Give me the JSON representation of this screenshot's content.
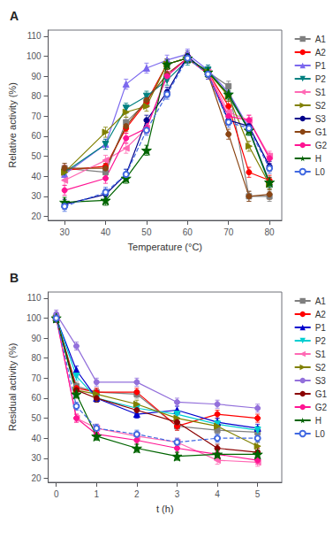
{
  "chart_data": [
    {
      "type": "line",
      "title": "A",
      "xlabel": "Temperature (°C)",
      "ylabel": "Relative activity (%)",
      "xlim": [
        26,
        83
      ],
      "ylim": [
        18,
        113
      ],
      "xticks": [
        30,
        40,
        50,
        60,
        70,
        80
      ],
      "yticks": [
        20,
        30,
        40,
        50,
        60,
        70,
        80,
        90,
        100,
        110
      ],
      "grid": false,
      "legend": "upper right",
      "yerr": 2.5,
      "x": [
        30,
        40,
        45,
        50,
        55,
        60,
        65,
        70,
        75,
        80
      ],
      "series": [
        {
          "name": "A1",
          "color": "#7f7f7f",
          "marker": "square",
          "line_style": "solid",
          "values": [
            44,
            42,
            67,
            77,
            96,
            99,
            92,
            85,
            30,
            30
          ]
        },
        {
          "name": "A2",
          "color": "#ff0000",
          "marker": "circle",
          "line_style": "solid",
          "values": [
            43,
            45,
            64,
            77,
            96,
            99,
            92,
            75,
            42,
            38
          ]
        },
        {
          "name": "P1",
          "color": "#7b68ee",
          "marker": "triangle-up",
          "line_style": "solid",
          "values": [
            41,
            56,
            86,
            94,
            98,
            101,
            93,
            82,
            64,
            37
          ]
        },
        {
          "name": "P2",
          "color": "#008080",
          "marker": "triangle-down",
          "line_style": "solid",
          "values": [
            42,
            56,
            74,
            80,
            88,
            98,
            93,
            80,
            63,
            36
          ]
        },
        {
          "name": "S1",
          "color": "#ff69b4",
          "marker": "triangle-left",
          "line_style": "solid",
          "values": [
            38,
            48,
            54,
            64,
            91,
            99,
            92,
            72,
            68,
            50
          ]
        },
        {
          "name": "S2",
          "color": "#808000",
          "marker": "triangle-right",
          "line_style": "solid",
          "values": [
            42,
            62,
            72,
            75,
            96,
            99,
            92,
            80,
            55,
            36
          ]
        },
        {
          "name": "S3",
          "color": "#00008b",
          "marker": "circle",
          "line_style": "solid",
          "values": [
            26,
            31,
            41,
            68,
            82,
            100,
            91,
            68,
            65,
            45
          ]
        },
        {
          "name": "G1",
          "color": "#8b4513",
          "marker": "circle",
          "line_style": "solid",
          "values": [
            44,
            44,
            65,
            78,
            91,
            99,
            91,
            61,
            30,
            31
          ]
        },
        {
          "name": "G2",
          "color": "#ff1493",
          "marker": "circle",
          "line_style": "solid",
          "values": [
            33,
            39,
            59,
            64,
            90,
            99,
            91,
            70,
            68,
            49
          ]
        },
        {
          "name": "H",
          "color": "#006400",
          "marker": "star",
          "line_style": "solid",
          "values": [
            27,
            28,
            39,
            53,
            96,
            99,
            92,
            81,
            63,
            37
          ]
        },
        {
          "name": "L0",
          "color": "#4169e1",
          "marker": "circle-open",
          "line_style": "dashed",
          "values": [
            25,
            32,
            41,
            63,
            81,
            99,
            91,
            67,
            64,
            44
          ]
        }
      ]
    },
    {
      "type": "line",
      "title": "B",
      "xlabel": "t (h)",
      "ylabel": "Residual activity (%)",
      "xlim": [
        -0.2,
        5.6
      ],
      "ylim": [
        18,
        113
      ],
      "xticks": [
        0,
        1,
        2,
        3,
        4,
        5
      ],
      "yticks": [
        20,
        30,
        40,
        50,
        60,
        70,
        80,
        90,
        100,
        110
      ],
      "grid": false,
      "legend": "upper right",
      "yerr": 2.0,
      "x": [
        0,
        0.5,
        1,
        2,
        3,
        4,
        5
      ],
      "series": [
        {
          "name": "A1",
          "color": "#7f7f7f",
          "marker": "square",
          "line_style": "solid",
          "values": [
            100,
            66,
            63,
            62,
            46,
            44,
            43
          ]
        },
        {
          "name": "A2",
          "color": "#ff0000",
          "marker": "circle",
          "line_style": "solid",
          "values": [
            100,
            65,
            63,
            63,
            46,
            52,
            50
          ]
        },
        {
          "name": "P1",
          "color": "#0000cd",
          "marker": "triangle-up",
          "line_style": "solid",
          "values": [
            100,
            74,
            60,
            52,
            54,
            48,
            45
          ]
        },
        {
          "name": "P2",
          "color": "#00ced1",
          "marker": "triangle-down",
          "line_style": "solid",
          "values": [
            100,
            71,
            60,
            55,
            52,
            47,
            44
          ]
        },
        {
          "name": "S1",
          "color": "#ff69b4",
          "marker": "triangle-left",
          "line_style": "solid",
          "values": [
            100,
            50,
            45,
            41,
            38,
            29,
            28
          ]
        },
        {
          "name": "S2",
          "color": "#808000",
          "marker": "triangle-right",
          "line_style": "solid",
          "values": [
            100,
            64,
            62,
            57,
            50,
            46,
            36
          ]
        },
        {
          "name": "S3",
          "color": "#9370db",
          "marker": "circle",
          "line_style": "solid",
          "values": [
            102,
            86,
            68,
            68,
            58,
            57,
            55
          ]
        },
        {
          "name": "G1",
          "color": "#8b0000",
          "marker": "circle",
          "line_style": "solid",
          "values": [
            100,
            64,
            60,
            54,
            48,
            35,
            33
          ]
        },
        {
          "name": "G2",
          "color": "#ff1493",
          "marker": "circle",
          "line_style": "solid",
          "values": [
            100,
            50,
            42,
            39,
            35,
            32,
            29
          ]
        },
        {
          "name": "H",
          "color": "#006400",
          "marker": "star",
          "line_style": "solid",
          "values": [
            100,
            62,
            41,
            35,
            31,
            32,
            32
          ]
        },
        {
          "name": "L0",
          "color": "#4169e1",
          "marker": "circle-open",
          "line_style": "dashed",
          "values": [
            100,
            56,
            45,
            42,
            38,
            40,
            40
          ]
        }
      ]
    }
  ]
}
